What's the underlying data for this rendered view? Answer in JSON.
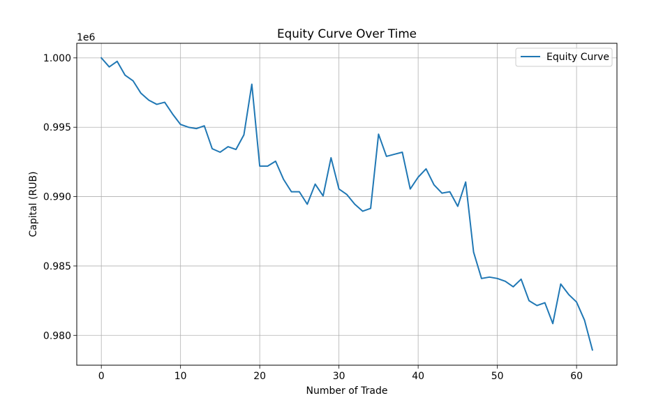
{
  "chart_data": {
    "type": "line",
    "title": "Equity Curve Over Time",
    "xlabel": "Number of Trade",
    "ylabel": "Capital (RUB)",
    "y_offset_label": "1e6",
    "xlim": [
      -3.1,
      65.1
    ],
    "ylim": [
      977850,
      1001050
    ],
    "xticks": [
      0,
      10,
      20,
      30,
      40,
      50,
      60
    ],
    "xtick_labels": [
      "0",
      "10",
      "20",
      "30",
      "40",
      "50",
      "60"
    ],
    "yticks": [
      980000,
      985000,
      990000,
      995000,
      1000000
    ],
    "ytick_labels": [
      "0.980",
      "0.985",
      "0.990",
      "0.995",
      "1.000"
    ],
    "grid": true,
    "legend_position": "top-right",
    "series": [
      {
        "name": "Equity Curve",
        "color": "#1f77b4",
        "x": [
          0,
          1,
          2,
          3,
          4,
          5,
          6,
          7,
          8,
          9,
          10,
          11,
          12,
          13,
          14,
          15,
          16,
          17,
          18,
          19,
          20,
          21,
          22,
          23,
          24,
          25,
          26,
          27,
          28,
          29,
          30,
          31,
          32,
          33,
          34,
          35,
          36,
          37,
          38,
          39,
          40,
          41,
          42,
          43,
          44,
          45,
          46,
          47,
          48,
          49,
          50,
          51,
          52,
          53,
          54,
          55,
          56,
          57,
          58,
          59,
          60,
          61,
          62
        ],
        "y": [
          1000000,
          999350,
          999750,
          998750,
          998350,
          997450,
          996950,
          996650,
          996800,
          995950,
          995200,
          995000,
          994900,
          995100,
          993450,
          993200,
          993600,
          993400,
          994450,
          998100,
          992200,
          992200,
          992550,
          991250,
          990350,
          990350,
          989450,
          990900,
          990050,
          992800,
          990550,
          990150,
          989450,
          988950,
          989150,
          994500,
          992900,
          993050,
          993200,
          990550,
          991400,
          992000,
          990850,
          990250,
          990350,
          989300,
          991050,
          986000,
          984100,
          984200,
          984100,
          983900,
          983500,
          984050,
          982500,
          982150,
          982350,
          980850,
          983700,
          982950,
          982400,
          981100,
          978950
        ]
      }
    ]
  }
}
